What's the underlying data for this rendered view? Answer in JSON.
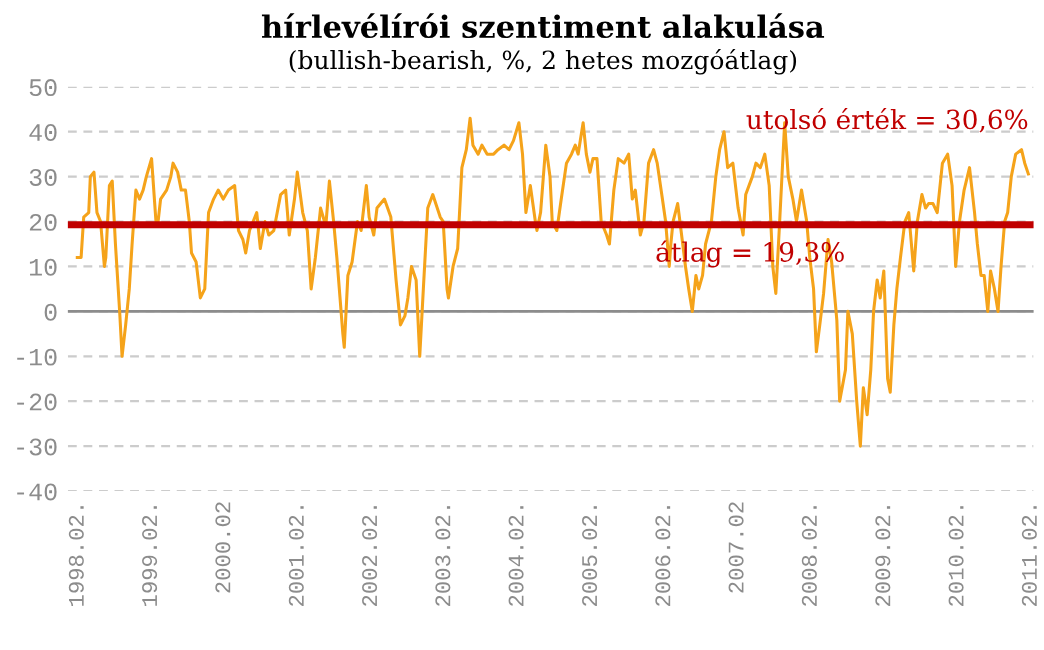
{
  "chart_data": {
    "type": "line",
    "title": "hírlevélírói szentiment alakulása",
    "subtitle": "(bullish-bearish, %, 2 hetes mozgóátlag)",
    "annotations": [
      "utolsó érték = 30,6%"
    ],
    "x": [
      "1998-01-29",
      "1998-02-17",
      "1998-03-02",
      "1998-03-27",
      "1998-04-04",
      "1998-04-22",
      "1998-05-07",
      "1998-05-25",
      "1998-06-13",
      "1998-06-20",
      "1998-07-08",
      "1998-07-22",
      "1998-08-07",
      "1998-08-28",
      "1998-09-09",
      "1998-09-27",
      "1998-10-15",
      "1998-10-29",
      "1998-11-17",
      "1998-12-05",
      "1998-12-23",
      "1999-01-08",
      "1999-02-03",
      "1999-02-25",
      "1999-03-05",
      "1999-03-20",
      "1999-04-19",
      "1999-05-10",
      "1999-05-21",
      "1999-06-13",
      "1999-07-01",
      "1999-07-22",
      "1999-08-10",
      "1999-08-21",
      "1999-09-13",
      "1999-10-04",
      "1999-10-26",
      "1999-11-14",
      "1999-12-09",
      "2000-01-01",
      "2000-01-26",
      "2000-02-21",
      "2000-03-23",
      "2000-04-11",
      "2000-05-03",
      "2000-05-17",
      "2000-06-05",
      "2000-07-11",
      "2000-07-29",
      "2000-08-21",
      "2000-09-09",
      "2000-10-04",
      "2000-11-07",
      "2000-12-02",
      "2000-12-20",
      "2001-01-15",
      "2001-01-29",
      "2001-02-25",
      "2001-03-20",
      "2001-04-08",
      "2001-04-29",
      "2001-05-25",
      "2001-06-20",
      "2001-07-08",
      "2001-07-29",
      "2001-08-14",
      "2001-09-13",
      "2001-09-20",
      "2001-10-08",
      "2001-10-29",
      "2001-11-25",
      "2001-12-13",
      "2002-01-08",
      "2002-01-22",
      "2002-02-14",
      "2002-03-02",
      "2002-04-08",
      "2002-05-10",
      "2002-06-05",
      "2002-06-27",
      "2002-07-19",
      "2002-08-03",
      "2002-08-21",
      "2002-09-13",
      "2002-10-01",
      "2002-10-19",
      "2002-11-10",
      "2002-12-05",
      "2003-01-11",
      "2003-01-26",
      "2003-02-14",
      "2003-02-21",
      "2003-03-16",
      "2003-04-08",
      "2003-04-29",
      "2003-05-21",
      "2003-06-09",
      "2003-06-23",
      "2003-07-19",
      "2003-08-07",
      "2003-09-02",
      "2003-10-04",
      "2003-10-26",
      "2003-11-25",
      "2003-12-20",
      "2004-01-11",
      "2004-02-07",
      "2004-02-25",
      "2004-03-13",
      "2004-04-04",
      "2004-04-29",
      "2004-05-07",
      "2004-05-25",
      "2004-06-20",
      "2004-07-11",
      "2004-07-22",
      "2004-08-14",
      "2004-09-05",
      "2004-10-01",
      "2004-10-26",
      "2004-11-14",
      "2004-11-28",
      "2004-12-23",
      "2005-01-08",
      "2005-01-26",
      "2005-02-10",
      "2005-03-02",
      "2005-03-23",
      "2005-04-19",
      "2005-05-03",
      "2005-05-25",
      "2005-06-16",
      "2005-07-15",
      "2005-08-07",
      "2005-08-25",
      "2005-09-09",
      "2005-10-04",
      "2005-10-22",
      "2005-11-14",
      "2005-12-09",
      "2005-12-27",
      "2006-01-22",
      "2006-02-07",
      "2006-02-25",
      "2006-03-05",
      "2006-03-16",
      "2006-04-08",
      "2006-04-22",
      "2006-05-17",
      "2006-06-02",
      "2006-06-20",
      "2006-07-08",
      "2006-07-22",
      "2006-08-10",
      "2006-08-25",
      "2006-09-23",
      "2006-10-15",
      "2006-11-03",
      "2006-11-25",
      "2006-12-13",
      "2007-01-08",
      "2007-02-03",
      "2007-02-28",
      "2007-03-13",
      "2007-04-15",
      "2007-05-03",
      "2007-05-25",
      "2007-06-16",
      "2007-07-08",
      "2007-07-26",
      "2007-08-10",
      "2007-08-28",
      "2007-09-23",
      "2007-10-11",
      "2007-11-03",
      "2007-11-21",
      "2007-12-16",
      "2008-01-11",
      "2008-01-26",
      "2008-02-14",
      "2008-02-28",
      "2008-03-16",
      "2008-04-04",
      "2008-04-26",
      "2008-05-14",
      "2008-06-09",
      "2008-06-23",
      "2008-07-22",
      "2008-08-03",
      "2008-08-25",
      "2008-09-16",
      "2008-10-04",
      "2008-10-19",
      "2008-11-07",
      "2008-11-25",
      "2008-12-09",
      "2008-12-27",
      "2009-01-11",
      "2009-01-29",
      "2009-02-17",
      "2009-03-02",
      "2009-03-20",
      "2009-04-04",
      "2009-04-22",
      "2009-05-14",
      "2009-06-02",
      "2009-06-27",
      "2009-07-15",
      "2009-08-07",
      "2009-08-25",
      "2009-09-09",
      "2009-10-01",
      "2009-10-22",
      "2009-11-17",
      "2009-12-13",
      "2010-01-04",
      "2010-01-22",
      "2010-02-10",
      "2010-03-05",
      "2010-04-01",
      "2010-04-26",
      "2010-05-10",
      "2010-05-28",
      "2010-06-13",
      "2010-07-01",
      "2010-07-15",
      "2010-08-03",
      "2010-08-21",
      "2010-09-05",
      "2010-09-23",
      "2010-10-08",
      "2010-10-26",
      "2010-11-17",
      "2010-12-16",
      "2011-01-01",
      "2011-01-19"
    ],
    "series": [
      {
        "color": "#f5a31a",
        "values": [
          12,
          12,
          21,
          22,
          30,
          31,
          22,
          20,
          10,
          12,
          28,
          29,
          15,
          0,
          -10,
          -3,
          5,
          15,
          27,
          25,
          27,
          30,
          34,
          20,
          19,
          25,
          27,
          30,
          33,
          31,
          27,
          27,
          20,
          13,
          11,
          3,
          5,
          22,
          25,
          27,
          25,
          27,
          28,
          18,
          16,
          13,
          18,
          22,
          14,
          20,
          17,
          18,
          26,
          27,
          17,
          25,
          31,
          22,
          18,
          5,
          12,
          23,
          19,
          29,
          20,
          12,
          -5,
          -8,
          8,
          11,
          20,
          18,
          28,
          21,
          17,
          23,
          25,
          21,
          7,
          -3,
          -1,
          3,
          10,
          7,
          -10,
          5,
          23,
          26,
          21,
          20,
          5,
          3,
          10,
          14,
          32,
          36,
          43,
          37,
          35,
          37,
          35,
          35,
          36,
          37,
          36,
          38,
          42,
          35,
          22,
          28,
          20,
          18,
          22,
          37,
          30,
          20,
          18,
          25,
          33,
          35,
          37,
          35,
          42,
          35,
          31,
          34,
          34,
          20,
          17,
          15,
          27,
          34,
          33,
          35,
          25,
          27,
          17,
          20,
          33,
          36,
          33,
          25,
          20,
          10,
          15,
          20,
          24,
          19,
          10,
          5,
          0,
          8,
          5,
          8,
          15,
          20,
          30,
          36,
          40,
          32,
          33,
          23,
          17,
          26,
          30,
          33,
          32,
          35,
          28,
          10,
          4,
          19,
          42,
          30,
          25,
          20,
          27,
          20,
          12,
          5,
          -9,
          -3,
          4,
          16,
          11,
          -2,
          -20,
          -13,
          0,
          -5,
          -20,
          -30,
          -17,
          -23,
          -13,
          0,
          7,
          3,
          9,
          -15,
          -18,
          -3,
          5,
          12,
          20,
          22,
          9,
          20,
          26,
          23,
          24,
          24,
          22,
          33,
          35,
          28,
          10,
          20,
          27,
          32,
          22,
          15,
          8,
          8,
          0,
          9,
          5,
          0,
          10,
          20,
          22,
          30,
          35,
          36,
          33,
          30.6
        ]
      }
    ],
    "xlim": [
      "1997-12-13",
      "2011-02-14"
    ],
    "xticks": [
      {
        "value": "1998-02",
        "label": "1998.02."
      },
      {
        "value": "1999-02",
        "label": "1999.02."
      },
      {
        "value": "2000-02",
        "label": "2000.02"
      },
      {
        "value": "2001-02",
        "label": "2001.02."
      },
      {
        "value": "2002-02",
        "label": "2002.02."
      },
      {
        "value": "2003-02",
        "label": "2003.02."
      },
      {
        "value": "2004-02",
        "label": "2004.02."
      },
      {
        "value": "2005-02",
        "label": "2005.02."
      },
      {
        "value": "2006-02",
        "label": "2006.02."
      },
      {
        "value": "2007-02",
        "label": "2007.02"
      },
      {
        "value": "2008-02",
        "label": "2008.02."
      },
      {
        "value": "2009-02",
        "label": "2009.02."
      },
      {
        "value": "2010-02",
        "label": "2010.02."
      },
      {
        "value": "2011-02",
        "label": "2011.02."
      }
    ],
    "ylim": [
      -40,
      50
    ],
    "yticks": [
      -40,
      -30,
      -20,
      -10,
      0,
      10,
      20,
      30,
      40,
      50
    ],
    "grid": "y",
    "legend": false,
    "ref_lines": [
      {
        "axis": "y",
        "value": 19.3,
        "label": "átlag = 19,3%",
        "color": "#c00000"
      },
      {
        "axis": "y",
        "value": 0,
        "color": "#8c8c8c"
      }
    ]
  }
}
